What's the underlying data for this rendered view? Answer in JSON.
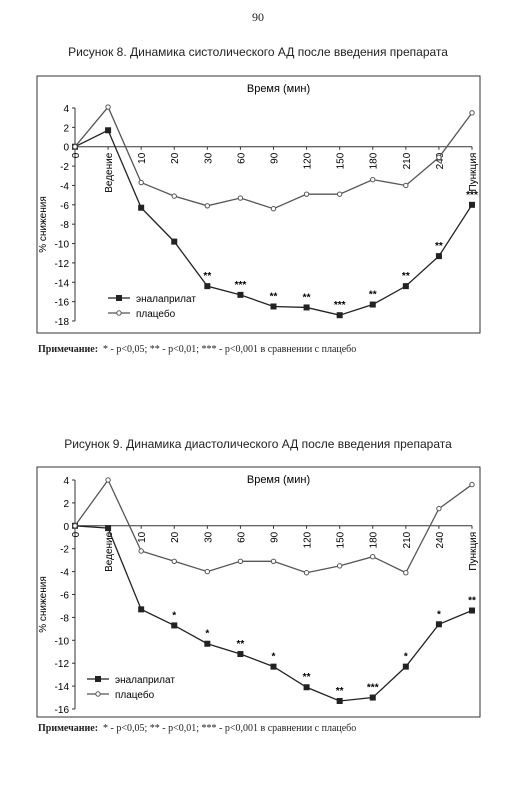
{
  "page_number": "90",
  "notes": {
    "label": "Примечание:",
    "text": "* - p<0,05; ** - p<0,01; *** - p<0,001 в сравнении с плацебо"
  },
  "chart_data": [
    {
      "type": "line",
      "title": "Рисунок 8.  Динамика систолического АД после введения препарата",
      "xlabel": "Время (мин)",
      "ylabel": "% снижения",
      "categories": [
        "0",
        "Ведение",
        "10",
        "20",
        "30",
        "60",
        "90",
        "120",
        "150",
        "180",
        "210",
        "240",
        "Пункция"
      ],
      "ylim": [
        -18,
        4
      ],
      "yticks": [
        4,
        2,
        0,
        -2,
        -4,
        -6,
        -8,
        -10,
        -12,
        -14,
        -16,
        -18
      ],
      "grid": false,
      "legend": "bottom-left",
      "series": [
        {
          "name": "эналаприлат",
          "marker": "filled-square",
          "color": "#222222",
          "values": [
            0,
            1.7,
            -6.3,
            -9.8,
            -14.4,
            -15.3,
            -16.5,
            -16.6,
            -17.4,
            -16.3,
            -14.4,
            -11.3,
            -6.0
          ],
          "significance": [
            "",
            "",
            "",
            "",
            "**",
            "***",
            "**",
            "**",
            "***",
            "**",
            "**",
            "**",
            "***"
          ]
        },
        {
          "name": "плацебо",
          "marker": "open-circle",
          "color": "#555555",
          "values": [
            0,
            4.1,
            -3.7,
            -5.1,
            -6.1,
            -5.3,
            -6.4,
            -4.9,
            -4.9,
            -3.4,
            -4.0,
            -1.1,
            3.5
          ]
        }
      ]
    },
    {
      "type": "line",
      "title": "Рисунок 9.  Динамика диастолического АД после введения препарата",
      "xlabel": "Время (мин)",
      "ylabel": "% снижения",
      "categories": [
        "0",
        "Ведение",
        "10",
        "20",
        "30",
        "60",
        "90",
        "120",
        "150",
        "180",
        "210",
        "240",
        "Пункция"
      ],
      "ylim": [
        -16,
        4
      ],
      "yticks": [
        4,
        2,
        0,
        -2,
        -4,
        -6,
        -8,
        -10,
        -12,
        -14,
        -16
      ],
      "grid": false,
      "legend": "bottom-left",
      "series": [
        {
          "name": "эналаприлат",
          "marker": "filled-square",
          "color": "#222222",
          "values": [
            0,
            -0.2,
            -7.3,
            -8.7,
            -10.3,
            -11.2,
            -12.3,
            -14.1,
            -15.3,
            -15.0,
            -12.3,
            -8.6,
            -7.4
          ],
          "significance": [
            "",
            "",
            "",
            "*",
            "*",
            "**",
            "*",
            "**",
            "**",
            "***",
            "*",
            "*",
            "**"
          ]
        },
        {
          "name": "плацебо",
          "marker": "open-circle",
          "color": "#555555",
          "values": [
            0,
            4.0,
            -2.2,
            -3.1,
            -4.0,
            -3.1,
            -3.1,
            -4.1,
            -3.5,
            -2.7,
            -4.1,
            1.5,
            3.6
          ]
        }
      ]
    }
  ]
}
